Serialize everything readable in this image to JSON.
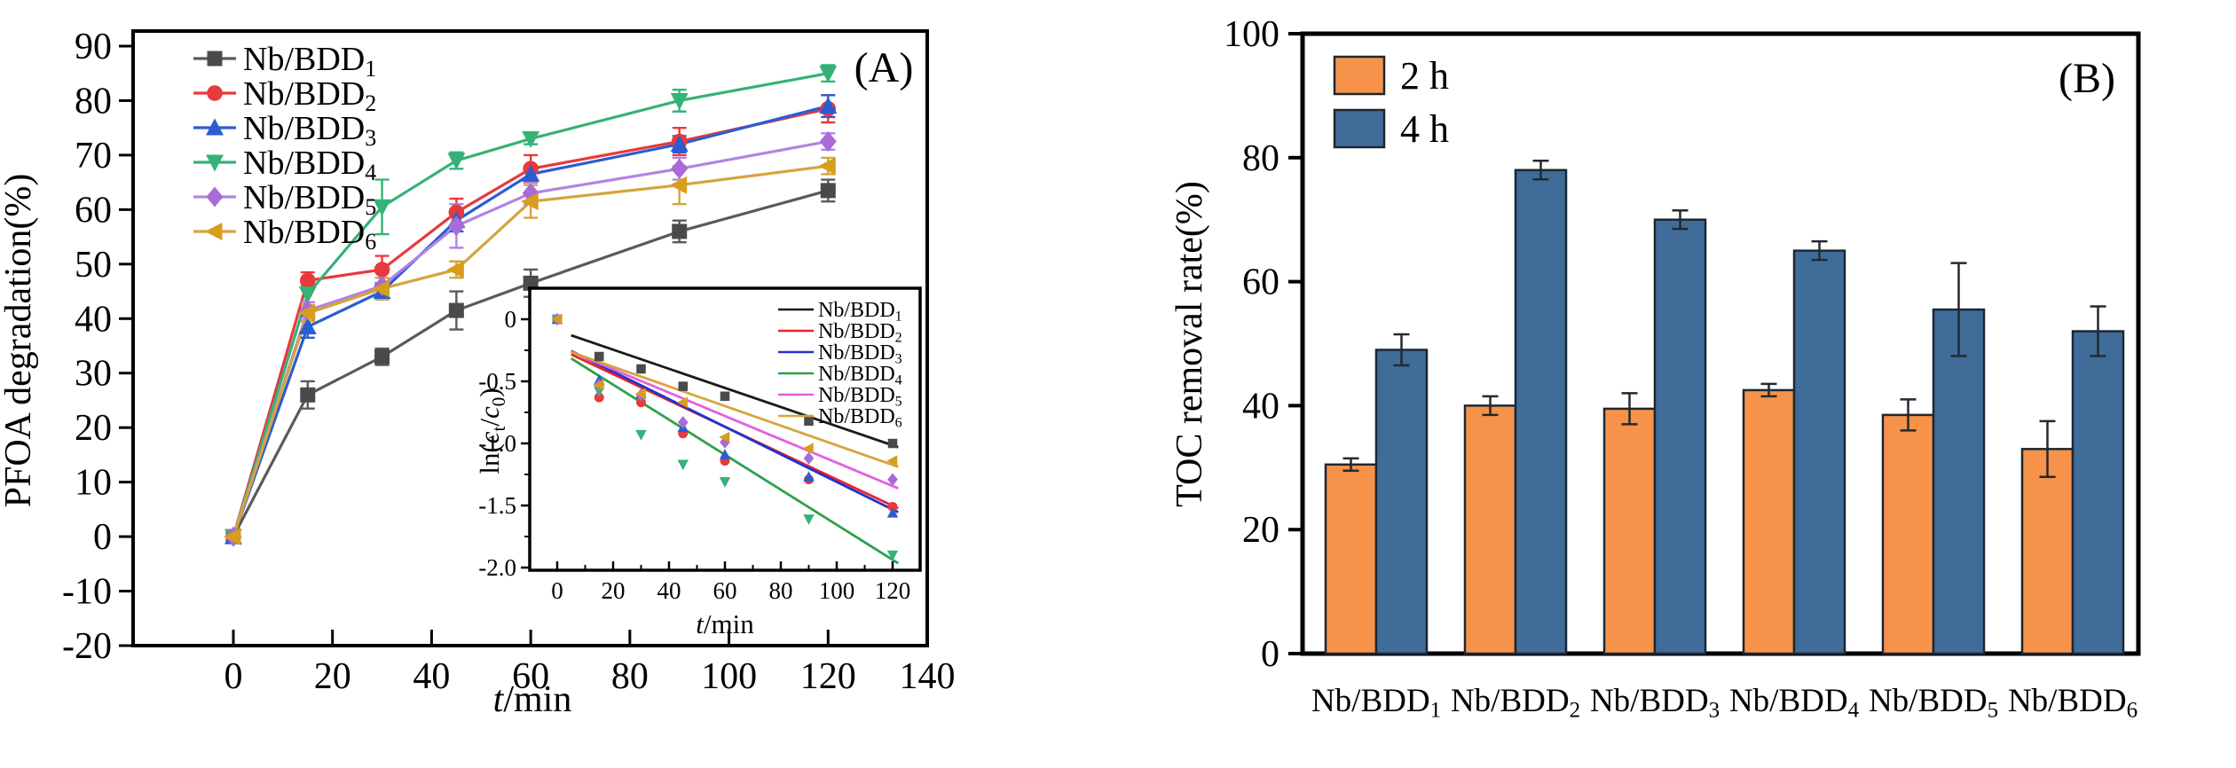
{
  "figure": {
    "background": "#ffffff",
    "axis_color": "#000000",
    "panel_a_tag": "(A)",
    "panel_b_tag": "(B)"
  },
  "chart_data": [
    {
      "id": "pfoa-degradation-line-chart",
      "type": "line",
      "panel_tag": "(A)",
      "ylabel": "PFOA degradation(%)",
      "xlabel_italic": "t",
      "xlabel_rest": "/min",
      "x": [
        0,
        15,
        30,
        45,
        60,
        90,
        120
      ],
      "x_ticks": [
        0,
        20,
        40,
        60,
        80,
        100,
        120,
        140
      ],
      "y_ticks": [
        90,
        80,
        70,
        60,
        50,
        40,
        30,
        20,
        10,
        0,
        -10,
        -20
      ],
      "xlim": [
        -22.4,
        140
      ],
      "ylim": [
        -20,
        92.8
      ],
      "grid": false,
      "legend_position": "top-left",
      "series": [
        {
          "name": "Nb/BDD",
          "sub": "1",
          "marker": "square",
          "color": "#4a4a4a",
          "line_color": "#5a5a5a",
          "values": [
            0,
            26,
            33,
            41.5,
            46.5,
            56,
            63.5
          ],
          "errors": [
            0.5,
            2.5,
            1.5,
            3.5,
            2.5,
            2,
            2
          ]
        },
        {
          "name": "Nb/BDD",
          "sub": "2",
          "marker": "circle",
          "color": "#e8393c",
          "line_color": "#e8393c",
          "values": [
            0,
            47,
            49,
            59.5,
            67.5,
            72.5,
            78.5
          ],
          "errors": [
            0.5,
            1.5,
            2.5,
            2.5,
            2.5,
            2.5,
            2.5
          ]
        },
        {
          "name": "Nb/BDD",
          "sub": "3",
          "marker": "triangle-up",
          "color": "#2b5dd0",
          "line_color": "#2b5dd0",
          "values": [
            0,
            38.5,
            45,
            58,
            66.5,
            72,
            79
          ],
          "errors": [
            0.5,
            2,
            1.5,
            2,
            1.5,
            1.5,
            2
          ]
        },
        {
          "name": "Nb/BDD",
          "sub": "4",
          "marker": "triangle-down",
          "color": "#35b277",
          "line_color": "#35b277",
          "values": [
            0,
            44.5,
            60.5,
            69,
            73,
            80,
            85
          ],
          "errors": [
            0.5,
            1.5,
            5,
            1.5,
            1,
            2,
            1.5
          ]
        },
        {
          "name": "Nb/BDD",
          "sub": "5",
          "marker": "diamond",
          "color": "#a96bd8",
          "line_color": "#b285e0",
          "values": [
            0,
            41.5,
            46,
            57,
            63,
            67.5,
            72.5
          ],
          "errors": [
            0.5,
            1.5,
            1.5,
            4,
            2,
            2,
            1.5
          ]
        },
        {
          "name": "Nb/BDD",
          "sub": "6",
          "marker": "triangle-left",
          "color": "#d79e1c",
          "line_color": "#d7a43c",
          "values": [
            0,
            41,
            45.5,
            49,
            61.5,
            64.5,
            68
          ],
          "errors": [
            0.5,
            1.5,
            2,
            1.5,
            3,
            3.5,
            1.5
          ]
        }
      ]
    },
    {
      "id": "kinetics-inset-scatter",
      "type": "scatter",
      "ylabel_parts": {
        "p1": "ln(",
        "p2": "c",
        "p3": "t",
        "p4": "/",
        "p5": "c",
        "p6": "0",
        "p7": ")"
      },
      "xlabel_italic": "t",
      "xlabel_rest": "/min",
      "x": [
        0,
        15,
        30,
        45,
        60,
        90,
        120
      ],
      "x_ticks": [
        0,
        20,
        40,
        60,
        80,
        100,
        120
      ],
      "y_ticks": [
        0,
        -0.5,
        -1.0,
        -1.5,
        -2.0
      ],
      "xlim": [
        -10,
        130
      ],
      "ylim": [
        -2.27,
        0.25
      ],
      "grid": false,
      "legend_position": "top-right",
      "series": [
        {
          "name": "Nb/BDD",
          "sub": "1",
          "marker": "square",
          "color": "#4a4a4a",
          "line_color": "#1a1a1a",
          "values": [
            0,
            -0.3,
            -0.4,
            -0.54,
            -0.62,
            -0.82,
            -1.0
          ],
          "fit": {
            "a": -0.091,
            "b": -0.0077
          }
        },
        {
          "name": "Nb/BDD",
          "sub": "2",
          "marker": "circle",
          "color": "#e8393c",
          "line_color": "#e8232a",
          "values": [
            0,
            -0.63,
            -0.67,
            -0.92,
            -1.14,
            -1.29,
            -1.51
          ],
          "fit": {
            "a": -0.23,
            "b": -0.0106
          }
        },
        {
          "name": "Nb/BDD",
          "sub": "3",
          "marker": "triangle-up",
          "color": "#2b5dd0",
          "line_color": "#2233cc",
          "values": [
            0,
            -0.49,
            -0.6,
            -0.87,
            -1.09,
            -1.27,
            -1.56
          ],
          "fit": {
            "a": -0.2,
            "b": -0.0111
          }
        },
        {
          "name": "Nb/BDD",
          "sub": "4",
          "marker": "triangle-down",
          "color": "#35b277",
          "line_color": "#2ca04a",
          "values": [
            0,
            -0.58,
            -0.93,
            -1.17,
            -1.31,
            -1.61,
            -1.9
          ],
          "fit": {
            "a": -0.245,
            "b": -0.0141
          }
        },
        {
          "name": "Nb/BDD",
          "sub": "5",
          "marker": "diamond",
          "color": "#a96bd8",
          "line_color": "#e45fe0",
          "values": [
            0,
            -0.53,
            -0.61,
            -0.83,
            -0.99,
            -1.12,
            -1.29
          ],
          "fit": {
            "a": -0.215,
            "b": -0.0094
          }
        },
        {
          "name": "Nb/BDD",
          "sub": "6",
          "marker": "triangle-left",
          "color": "#d79e1c",
          "line_color": "#d7a43c",
          "values": [
            0,
            -0.53,
            -0.6,
            -0.67,
            -0.95,
            -1.04,
            -1.14
          ],
          "fit": {
            "a": -0.225,
            "b": -0.0079
          }
        }
      ]
    },
    {
      "id": "toc-removal-bar-chart",
      "type": "bar",
      "panel_tag": "(B)",
      "ylabel": "TOC removal rate(%)",
      "y_ticks": [
        0,
        20,
        40,
        60,
        80,
        100
      ],
      "ylim": [
        0,
        100
      ],
      "grid": false,
      "legend_position": "top-left",
      "bar_border": "#1c2733",
      "categories": [
        {
          "name": "Nb/BDD",
          "sub": "1"
        },
        {
          "name": "Nb/BDD",
          "sub": "2"
        },
        {
          "name": "Nb/BDD",
          "sub": "3"
        },
        {
          "name": "Nb/BDD",
          "sub": "4"
        },
        {
          "name": "Nb/BDD",
          "sub": "5"
        },
        {
          "name": "Nb/BDD",
          "sub": "6"
        }
      ],
      "series": [
        {
          "name": "2 h",
          "color": "#f6924a",
          "values": [
            30.5,
            40,
            39.5,
            42.5,
            38.5,
            33
          ],
          "errors": [
            1,
            1.5,
            2.5,
            1,
            2.5,
            4.5
          ]
        },
        {
          "name": "4 h",
          "color": "#406c99",
          "values": [
            49,
            78,
            70,
            65,
            55.5,
            52
          ],
          "errors": [
            2.5,
            1.5,
            1.5,
            1.5,
            7.5,
            4
          ]
        }
      ]
    }
  ]
}
